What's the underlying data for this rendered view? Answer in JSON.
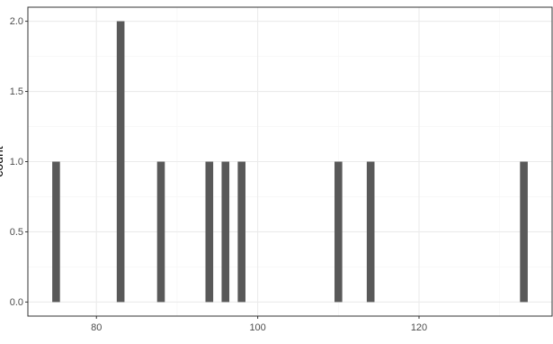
{
  "chart_data": {
    "type": "bar",
    "title": "",
    "xlabel": "",
    "ylabel": "count",
    "x": [
      75,
      83,
      88,
      94,
      96,
      98,
      110,
      114,
      133
    ],
    "values": [
      1,
      2,
      1,
      1,
      1,
      1,
      1,
      1,
      1
    ],
    "xlim": [
      71.5,
      136.5
    ],
    "ylim": [
      -0.1,
      2.1
    ],
    "x_ticks": [
      80,
      100,
      120
    ],
    "x_tick_labels": [
      "80",
      "100",
      "120"
    ],
    "y_ticks": [
      0,
      0.5,
      1,
      1.5,
      2
    ],
    "y_tick_labels": [
      "0.0",
      "0.5",
      "1.0",
      "1.5",
      "2.0"
    ],
    "grid": true,
    "colors": {
      "bar": "#595959",
      "grid_major": "#ebebeb",
      "grid_minor": "#f5f5f5",
      "panel_border": "#333333",
      "text": "#4d4d4d"
    }
  }
}
